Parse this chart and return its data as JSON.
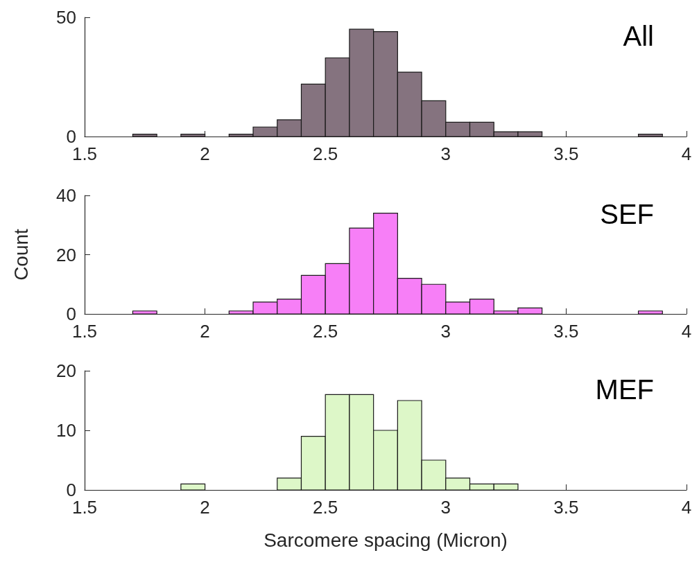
{
  "chart_data": [
    {
      "type": "histogram",
      "title": "All",
      "bins": [
        1.5,
        1.6,
        1.7,
        1.8,
        1.9,
        2.0,
        2.1,
        2.2,
        2.3,
        2.4,
        2.5,
        2.6,
        2.7,
        2.8,
        2.9,
        3.0,
        3.1,
        3.2,
        3.3,
        3.4,
        3.5,
        3.6,
        3.7,
        3.8,
        3.9,
        4.0
      ],
      "values": [
        0,
        0,
        1,
        0,
        1,
        0,
        1,
        4,
        7,
        22,
        33,
        45,
        44,
        27,
        15,
        6,
        6,
        2,
        2,
        0,
        0,
        0,
        0,
        1,
        0
      ],
      "color": "#85737f",
      "xlim": [
        1.5,
        4
      ],
      "xticks": [
        1.5,
        2,
        2.5,
        3,
        3.5,
        4
      ],
      "ylim": [
        0,
        50
      ],
      "yticks": [
        0,
        50
      ]
    },
    {
      "type": "histogram",
      "title": "SEF",
      "ylabel": "Count",
      "bins": [
        1.5,
        1.6,
        1.7,
        1.8,
        1.9,
        2.0,
        2.1,
        2.2,
        2.3,
        2.4,
        2.5,
        2.6,
        2.7,
        2.8,
        2.9,
        3.0,
        3.1,
        3.2,
        3.3,
        3.4,
        3.5,
        3.6,
        3.7,
        3.8,
        3.9,
        4.0
      ],
      "values": [
        0,
        0,
        1,
        0,
        0,
        0,
        1,
        4,
        5,
        13,
        17,
        29,
        34,
        12,
        10,
        4,
        5,
        1,
        2,
        0,
        0,
        0,
        0,
        1,
        0
      ],
      "color": "#f77ff7",
      "xlim": [
        1.5,
        4
      ],
      "xticks": [
        1.5,
        2,
        2.5,
        3,
        3.5,
        4
      ],
      "ylim": [
        0,
        40
      ],
      "yticks": [
        0,
        20,
        40
      ]
    },
    {
      "type": "histogram",
      "title": "MEF",
      "xlabel": "Sarcomere spacing (Micron)",
      "bins": [
        1.5,
        1.6,
        1.7,
        1.8,
        1.9,
        2.0,
        2.1,
        2.2,
        2.3,
        2.4,
        2.5,
        2.6,
        2.7,
        2.8,
        2.9,
        3.0,
        3.1,
        3.2,
        3.3,
        3.4,
        3.5,
        3.6,
        3.7,
        3.8,
        3.9,
        4.0
      ],
      "values": [
        0,
        0,
        0,
        0,
        1,
        0,
        0,
        0,
        2,
        9,
        16,
        16,
        10,
        15,
        5,
        2,
        1,
        1,
        0,
        0,
        0,
        0,
        0,
        0,
        0
      ],
      "color": "#ddf7c8",
      "xlim": [
        1.5,
        4
      ],
      "xticks": [
        1.5,
        2,
        2.5,
        3,
        3.5,
        4
      ],
      "ylim": [
        0,
        20
      ],
      "yticks": [
        0,
        10,
        20
      ]
    }
  ]
}
